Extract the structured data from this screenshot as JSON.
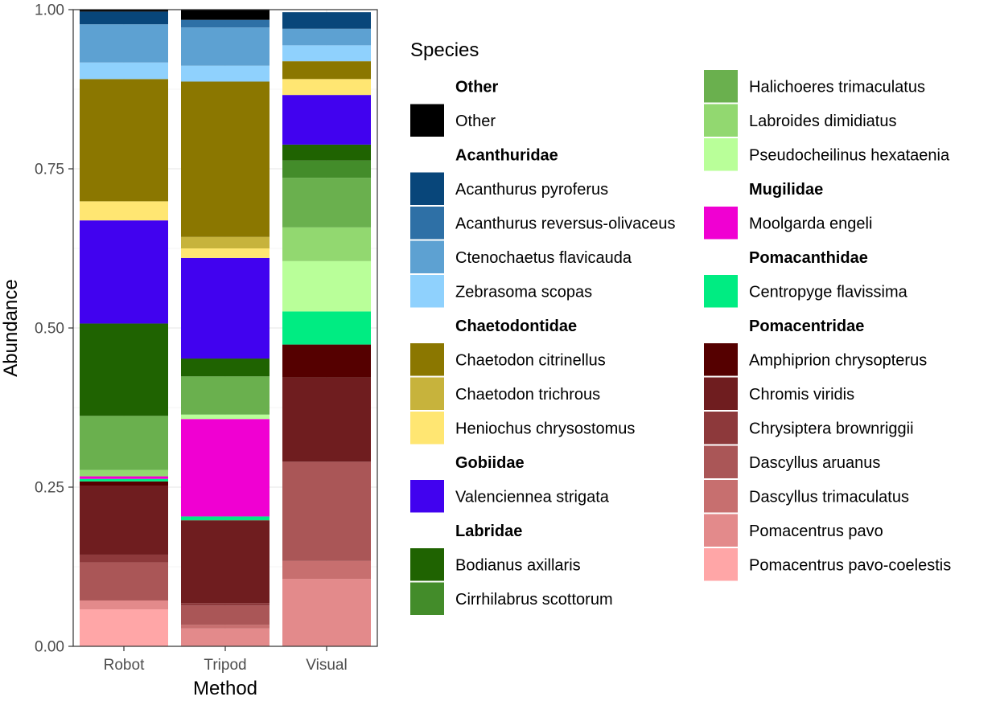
{
  "chart_data": {
    "type": "bar",
    "stacked": true,
    "xlabel": "Method",
    "ylabel": "Abundance",
    "ylim": [
      0,
      1
    ],
    "yticks": [
      "0.00",
      "0.25",
      "0.50",
      "0.75",
      "1.00"
    ],
    "yticks_values": [
      0,
      0.25,
      0.5,
      0.75,
      1.0
    ],
    "grid": true,
    "legend_position": "right",
    "categories": [
      "Robot",
      "Tripod",
      "Visual"
    ],
    "legend": {
      "title": "Species",
      "columns": [
        [
          {
            "kind": "header",
            "label": "Other"
          },
          {
            "kind": "item",
            "label": "Other",
            "color": "#000000"
          },
          {
            "kind": "header",
            "label": "Acanthuridae"
          },
          {
            "kind": "item",
            "label": "Acanthurus pyroferus",
            "color": "#08467A"
          },
          {
            "kind": "item",
            "label": "Acanthurus reversus-olivaceus",
            "color": "#2E70A6"
          },
          {
            "kind": "item",
            "label": "Ctenochaetus flavicauda",
            "color": "#5DA1D2"
          },
          {
            "kind": "item",
            "label": "Zebrasoma scopas",
            "color": "#8FD1FD"
          },
          {
            "kind": "header",
            "label": "Chaetodontidae"
          },
          {
            "kind": "item",
            "label": "Chaetodon citrinellus",
            "color": "#8B7700"
          },
          {
            "kind": "item",
            "label": "Chaetodon trichrous",
            "color": "#C7B33C"
          },
          {
            "kind": "item",
            "label": "Heniochus chrysostomus",
            "color": "#FFE672"
          },
          {
            "kind": "header",
            "label": "Gobiidae"
          },
          {
            "kind": "item",
            "label": "Valenciennea strigata",
            "color": "#4102EF"
          },
          {
            "kind": "header",
            "label": "Labridae"
          },
          {
            "kind": "item",
            "label": "Bodianus axillaris",
            "color": "#1F6301"
          },
          {
            "kind": "item",
            "label": "Cirrhilabrus scottorum",
            "color": "#438C2A"
          }
        ],
        [
          {
            "kind": "item",
            "label": "Halichoeres trimaculatus",
            "color": "#6AB04E"
          },
          {
            "kind": "item",
            "label": "Labroides dimidiatus",
            "color": "#92D870"
          },
          {
            "kind": "item",
            "label": "Pseudocheilinus hexataenia",
            "color": "#B9FF99"
          },
          {
            "kind": "header",
            "label": "Mugilidae"
          },
          {
            "kind": "item",
            "label": "Moolgarda engeli",
            "color": "#F000D2"
          },
          {
            "kind": "header",
            "label": "Pomacanthidae"
          },
          {
            "kind": "item",
            "label": "Centropyge flavissima",
            "color": "#00EC82"
          },
          {
            "kind": "header",
            "label": "Pomacentridae"
          },
          {
            "kind": "item",
            "label": "Amphiprion chrysopterus",
            "color": "#550000"
          },
          {
            "kind": "item",
            "label": "Chromis viridis",
            "color": "#6F1D1F"
          },
          {
            "kind": "item",
            "label": "Chrysiptera brownriggii",
            "color": "#8D393B"
          },
          {
            "kind": "item",
            "label": "Dascyllus aruanus",
            "color": "#AA5657"
          },
          {
            "kind": "item",
            "label": "Dascyllus trimaculatus",
            "color": "#C76F6F"
          },
          {
            "kind": "item",
            "label": "Pomacentrus pavo",
            "color": "#E38A8B"
          },
          {
            "kind": "item",
            "label": "Pomacentrus pavo-coelestis",
            "color": "#FFA6A7"
          }
        ]
      ]
    },
    "series": [
      {
        "name": "Pomacentrus pavo-coelestis",
        "color": "#FFA6A7",
        "values": [
          0.058,
          0.0,
          0.0
        ]
      },
      {
        "name": "Pomacentrus pavo",
        "color": "#E38A8B",
        "values": [
          0.014,
          0.028,
          0.106
        ]
      },
      {
        "name": "Dascyllus trimaculatus",
        "color": "#C76F6F",
        "values": [
          0.0,
          0.006,
          0.028
        ]
      },
      {
        "name": "Dascyllus aruanus",
        "color": "#AA5657",
        "values": [
          0.06,
          0.03,
          0.156
        ]
      },
      {
        "name": "Chrysiptera brownriggii",
        "color": "#8D393B",
        "values": [
          0.012,
          0.004,
          0.0
        ]
      },
      {
        "name": "Chromis viridis",
        "color": "#6F1D1F",
        "values": [
          0.108,
          0.13,
          0.132
        ]
      },
      {
        "name": "Amphiprion chrysopterus",
        "color": "#550000",
        "values": [
          0.007,
          0.0,
          0.052
        ]
      },
      {
        "name": "Centropyge flavissima",
        "color": "#00EC82",
        "values": [
          0.004,
          0.006,
          0.052
        ]
      },
      {
        "name": "Moolgarda engeli",
        "color": "#F000D2",
        "values": [
          0.004,
          0.153,
          0.0
        ]
      },
      {
        "name": "Pseudocheilinus hexataenia",
        "color": "#B9FF99",
        "values": [
          0.0,
          0.007,
          0.079
        ]
      },
      {
        "name": "Labroides dimidiatus",
        "color": "#92D870",
        "values": [
          0.01,
          0.0,
          0.053
        ]
      },
      {
        "name": "Halichoeres trimaculatus",
        "color": "#6AB04E",
        "values": [
          0.085,
          0.06,
          0.078
        ]
      },
      {
        "name": "Cirrhilabrus scottorum",
        "color": "#438C2A",
        "values": [
          0.0,
          0.0,
          0.027
        ]
      },
      {
        "name": "Bodianus axillaris",
        "color": "#1F6301",
        "values": [
          0.145,
          0.028,
          0.025
        ]
      },
      {
        "name": "Valenciennea strigata",
        "color": "#4102EF",
        "values": [
          0.162,
          0.158,
          0.078
        ]
      },
      {
        "name": "Heniochus chrysostomus",
        "color": "#FFE672",
        "values": [
          0.03,
          0.015,
          0.025
        ]
      },
      {
        "name": "Chaetodon trichrous",
        "color": "#C7B33C",
        "values": [
          0.0,
          0.018,
          0.0
        ]
      },
      {
        "name": "Chaetodon citrinellus",
        "color": "#8B7700",
        "values": [
          0.192,
          0.244,
          0.028
        ]
      },
      {
        "name": "Zebrasoma scopas",
        "color": "#8FD1FD",
        "values": [
          0.026,
          0.025,
          0.025
        ]
      },
      {
        "name": "Ctenochaetus flavicauda",
        "color": "#5DA1D2",
        "values": [
          0.06,
          0.06,
          0.026
        ]
      },
      {
        "name": "Acanthurus reversus-olivaceus",
        "color": "#2E70A6",
        "values": [
          0.0,
          0.012,
          0.0
        ]
      },
      {
        "name": "Acanthurus pyroferus",
        "color": "#08467A",
        "values": [
          0.02,
          0.0,
          0.026
        ]
      },
      {
        "name": "Other",
        "color": "#000000",
        "values": [
          0.003,
          0.016,
          0.0
        ]
      }
    ]
  }
}
